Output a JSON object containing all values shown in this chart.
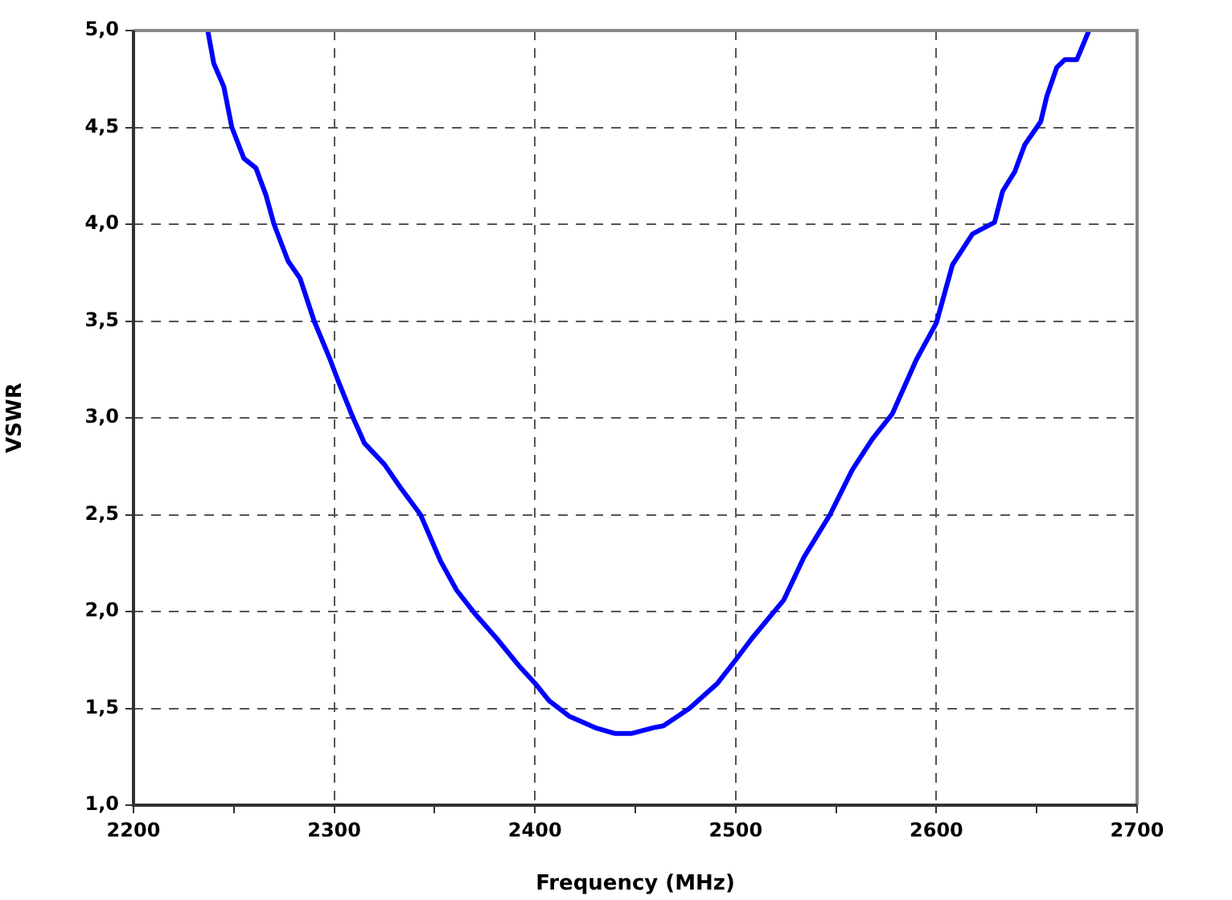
{
  "chart_data": {
    "type": "line",
    "xlabel": "Frequency (MHz)",
    "ylabel": "VSWR",
    "xlim": [
      2200,
      2700
    ],
    "ylim": [
      1,
      5
    ],
    "xticks": [
      2200,
      {
        "value": 2250,
        "label": null
      },
      2300,
      {
        "value": 2350,
        "label": null
      },
      2400,
      {
        "value": 2450,
        "label": null
      },
      2500,
      {
        "value": 2550,
        "label": null
      },
      2600,
      {
        "value": 2650,
        "label": null
      },
      2700
    ],
    "yticks": [
      {
        "value": 1,
        "label": "1,0"
      },
      {
        "value": 1.5,
        "label": "1,5"
      },
      {
        "value": 2,
        "label": "2,0"
      },
      {
        "value": 2.5,
        "label": "2,5"
      },
      {
        "value": 3,
        "label": "3,0"
      },
      {
        "value": 3.5,
        "label": "3,5"
      },
      {
        "value": 4,
        "label": "4,0"
      },
      {
        "value": 4.5,
        "label": "4,5"
      },
      {
        "value": 5,
        "label": "5,0"
      }
    ],
    "grid": true,
    "legend": false,
    "marker": "none",
    "line_style": "solid",
    "series": [
      {
        "color": "#0000ff",
        "x": [
          2237,
          2240,
          2245,
          2249,
          2255,
          2261,
          2266,
          2270,
          2277,
          2283,
          2290,
          2298,
          2302,
          2309,
          2315,
          2325,
          2333,
          2343,
          2353,
          2361,
          2370,
          2381,
          2392,
          2400,
          2407,
          2417,
          2430,
          2440,
          2448,
          2459,
          2464,
          2477,
          2491,
          2500,
          2508,
          2524,
          2534,
          2547,
          2558,
          2568,
          2578,
          2590,
          2600,
          2608,
          2618,
          2629,
          2633,
          2639,
          2644,
          2652,
          2655,
          2660,
          2664,
          2670,
          2676
        ],
        "values": [
          5.0,
          4.83,
          4.71,
          4.5,
          4.34,
          4.29,
          4.15,
          4.0,
          3.81,
          3.72,
          3.5,
          3.3,
          3.19,
          3.01,
          2.87,
          2.76,
          2.64,
          2.5,
          2.26,
          2.11,
          1.99,
          1.86,
          1.72,
          1.63,
          1.54,
          1.46,
          1.4,
          1.37,
          1.37,
          1.4,
          1.41,
          1.5,
          1.63,
          1.75,
          1.86,
          2.06,
          2.28,
          2.5,
          2.73,
          2.89,
          3.02,
          3.3,
          3.49,
          3.79,
          3.95,
          4.01,
          4.17,
          4.27,
          4.41,
          4.53,
          4.66,
          4.81,
          4.85,
          4.85,
          5.0
        ]
      }
    ]
  }
}
